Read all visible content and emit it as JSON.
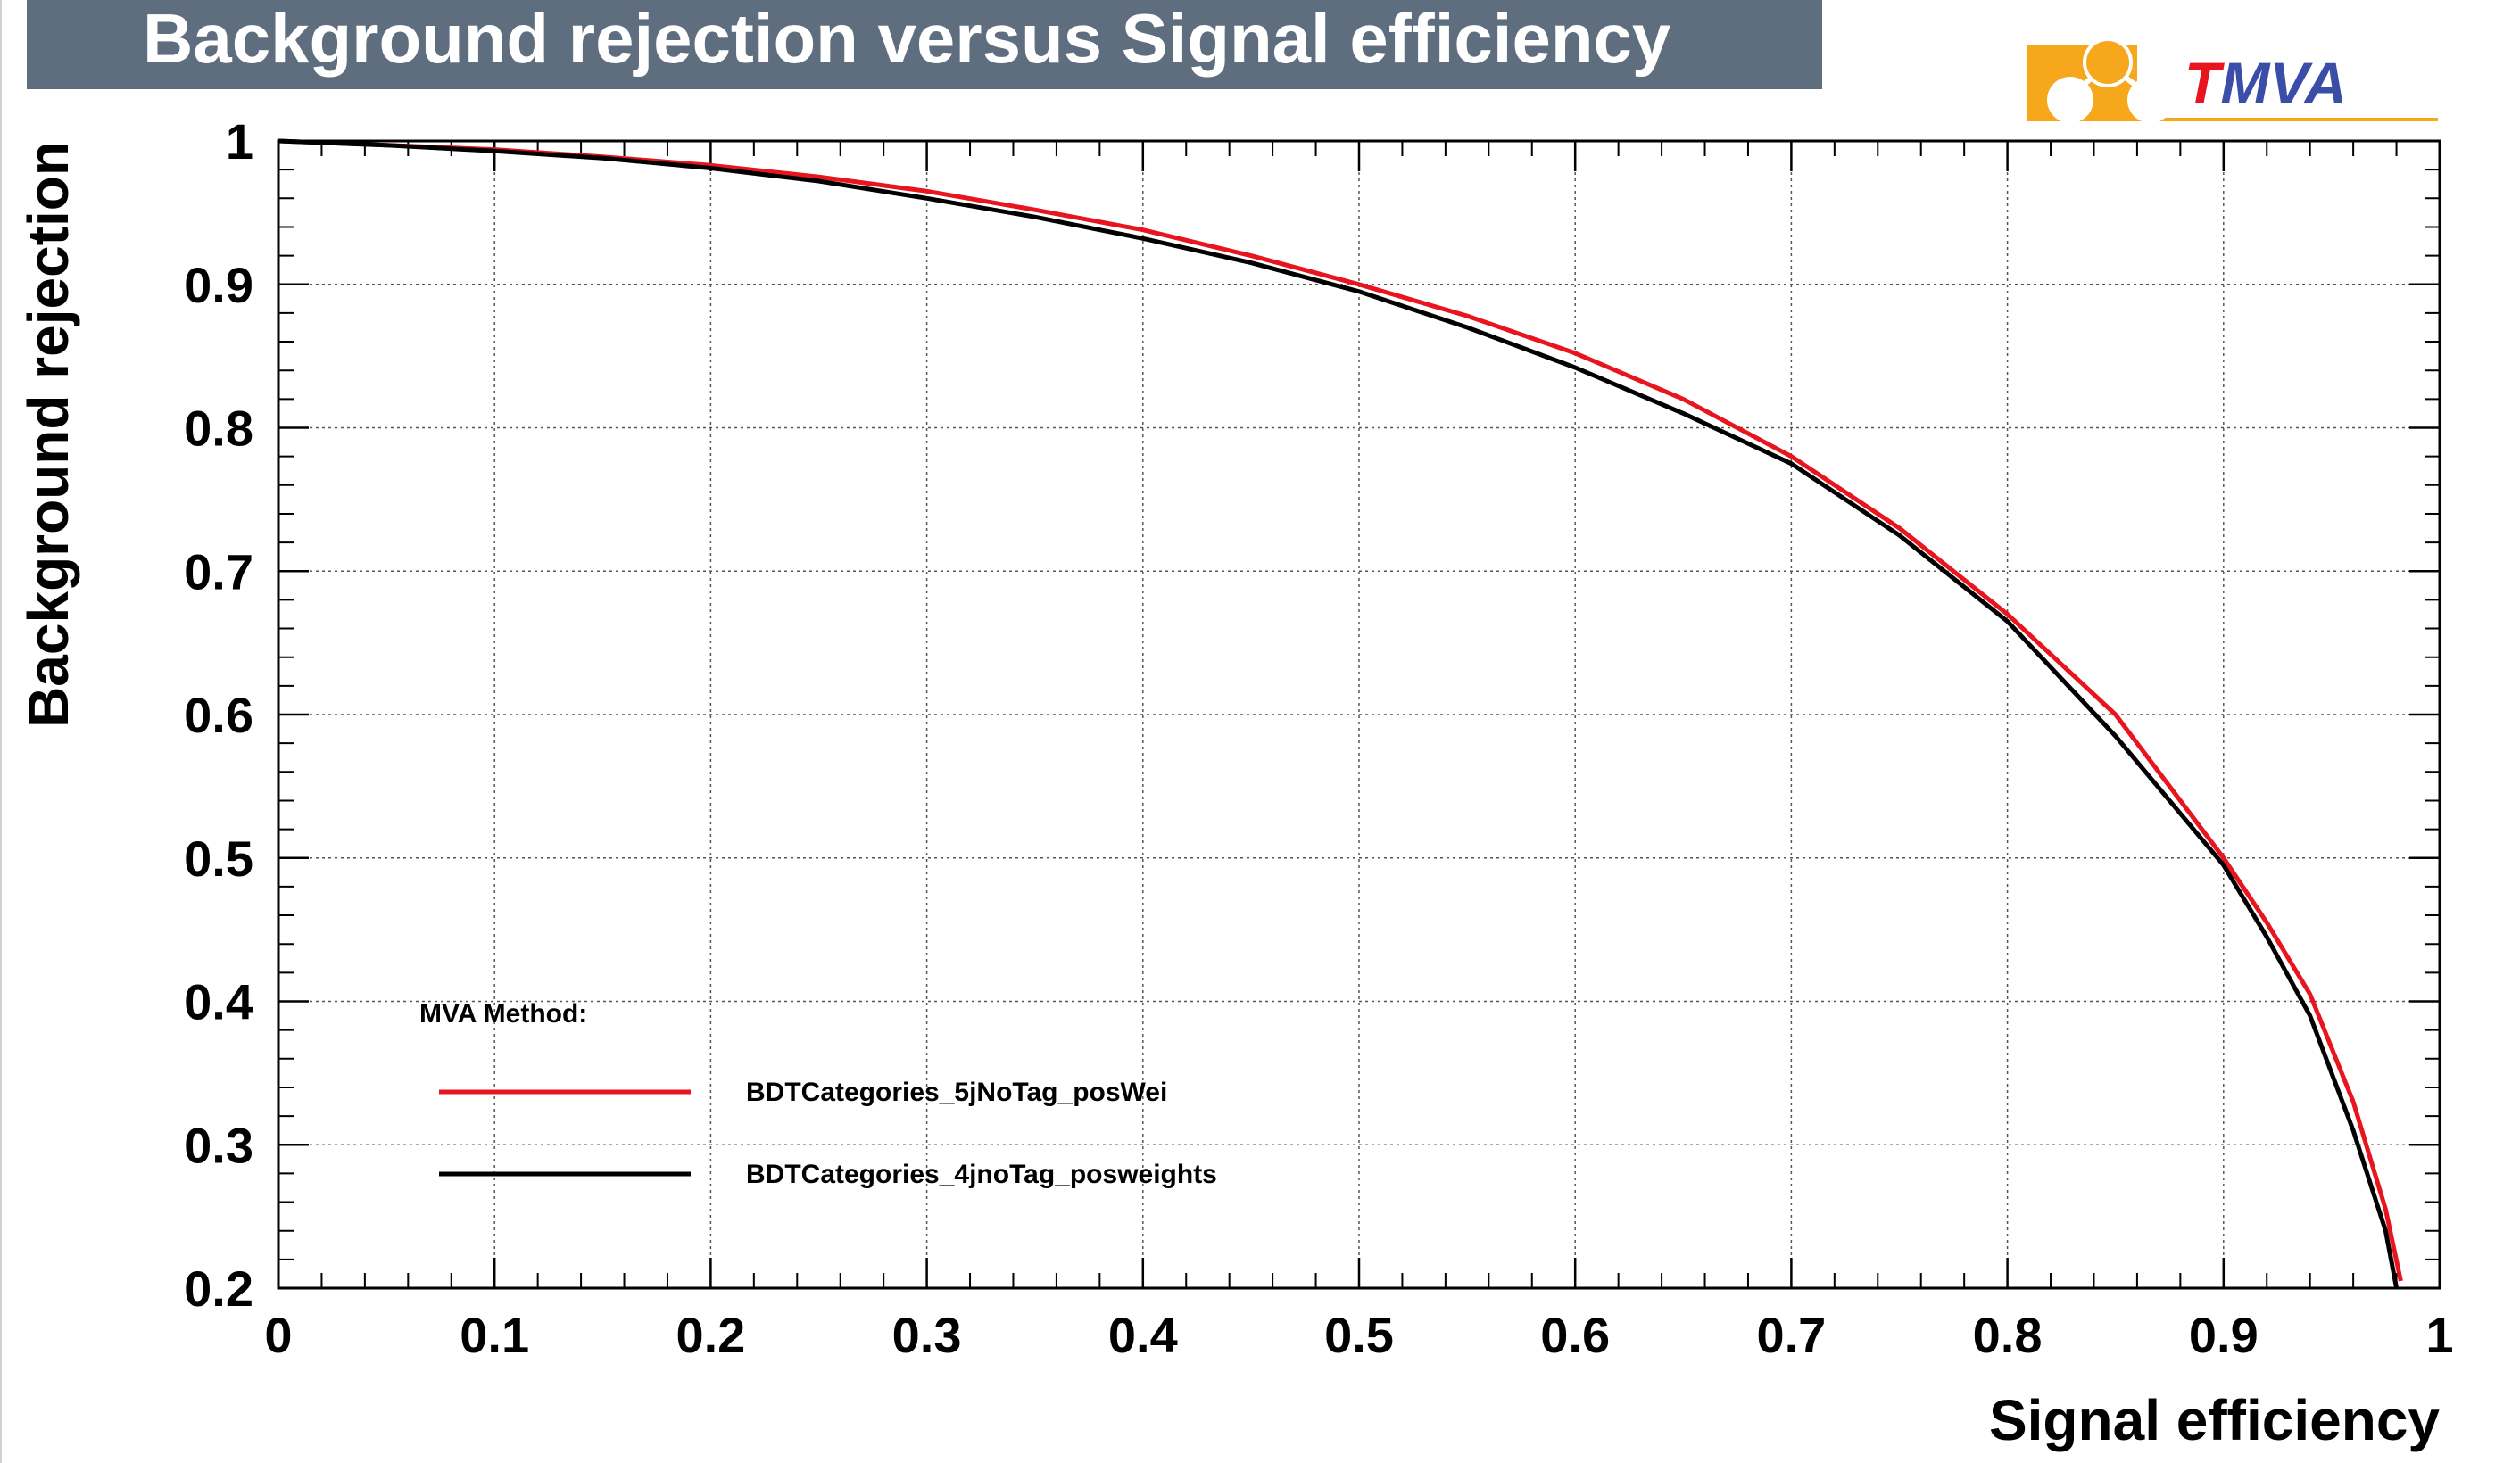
{
  "chart_data": {
    "type": "line",
    "title": "Background rejection versus Signal efficiency",
    "xlabel": "Signal efficiency",
    "ylabel": "Background rejection",
    "xlim": [
      0,
      1
    ],
    "ylim": [
      0.2,
      1
    ],
    "x_ticks": [
      "0",
      "0.1",
      "0.2",
      "0.3",
      "0.4",
      "0.5",
      "0.6",
      "0.7",
      "0.8",
      "0.9",
      "1"
    ],
    "y_ticks": [
      "0.2",
      "0.3",
      "0.4",
      "0.5",
      "0.6",
      "0.7",
      "0.8",
      "0.9",
      "1"
    ],
    "grid": true,
    "legend_placement": "bottom-left",
    "legend_header": "MVA Method:",
    "series": [
      {
        "name": "BDTCategories_5jNoTag_posWei",
        "color": "#e8141e",
        "x": [
          0,
          0.05,
          0.1,
          0.15,
          0.2,
          0.25,
          0.3,
          0.35,
          0.4,
          0.45,
          0.5,
          0.55,
          0.6,
          0.65,
          0.7,
          0.75,
          0.8,
          0.85,
          0.9,
          0.92,
          0.94,
          0.96,
          0.975,
          0.982
        ],
        "y": [
          1.0,
          0.997,
          0.994,
          0.989,
          0.983,
          0.975,
          0.965,
          0.952,
          0.938,
          0.92,
          0.9,
          0.878,
          0.852,
          0.82,
          0.78,
          0.73,
          0.67,
          0.6,
          0.5,
          0.455,
          0.405,
          0.33,
          0.255,
          0.205
        ]
      },
      {
        "name": "BDTCategories_4jnoTag_posweights",
        "color": "#000000",
        "x": [
          0,
          0.05,
          0.1,
          0.15,
          0.2,
          0.25,
          0.3,
          0.35,
          0.4,
          0.45,
          0.5,
          0.55,
          0.6,
          0.65,
          0.7,
          0.75,
          0.8,
          0.85,
          0.9,
          0.92,
          0.94,
          0.96,
          0.975,
          0.98
        ],
        "y": [
          1.0,
          0.997,
          0.993,
          0.988,
          0.981,
          0.972,
          0.96,
          0.947,
          0.932,
          0.915,
          0.895,
          0.87,
          0.842,
          0.81,
          0.775,
          0.725,
          0.665,
          0.585,
          0.495,
          0.445,
          0.39,
          0.31,
          0.24,
          0.2
        ]
      }
    ]
  },
  "logo": {
    "text_t": "T",
    "text_rest": "MVA",
    "text_t_color": "#e8141e",
    "text_rest_color": "#3a4ea8",
    "band_color": "#f7a71c"
  },
  "colors": {
    "title_bar": "#5f6e7f",
    "frame": "#000000",
    "grid": "#555555"
  }
}
